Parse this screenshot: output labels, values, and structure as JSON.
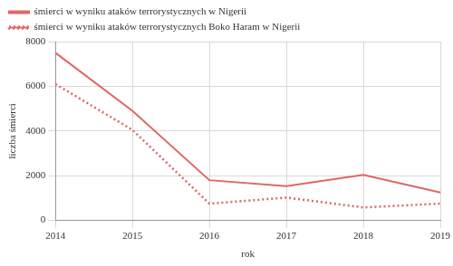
{
  "chart_data": {
    "type": "line",
    "categories": [
      "2014",
      "2015",
      "2016",
      "2017",
      "2018",
      "2019"
    ],
    "series": [
      {
        "name": "śmierci w wyniku ataków terrorystycznych w Nigerii",
        "color": "#e06666",
        "line_style": "solid",
        "values": [
          7500,
          4900,
          1800,
          1530,
          2040,
          1250
        ]
      },
      {
        "name": "śmierci w wyniku ataków terrorystycznych Boko Haram w Nigerii",
        "color": "#e06666",
        "line_style": "dotted",
        "values": [
          6100,
          4050,
          750,
          1020,
          580,
          750
        ]
      }
    ],
    "xlabel": "rok",
    "ylabel": "liczba śmierci",
    "ylim": [
      0,
      8000
    ],
    "yticks": [
      0,
      2000,
      4000,
      6000,
      8000
    ],
    "grid": true,
    "legend": "top-left"
  }
}
